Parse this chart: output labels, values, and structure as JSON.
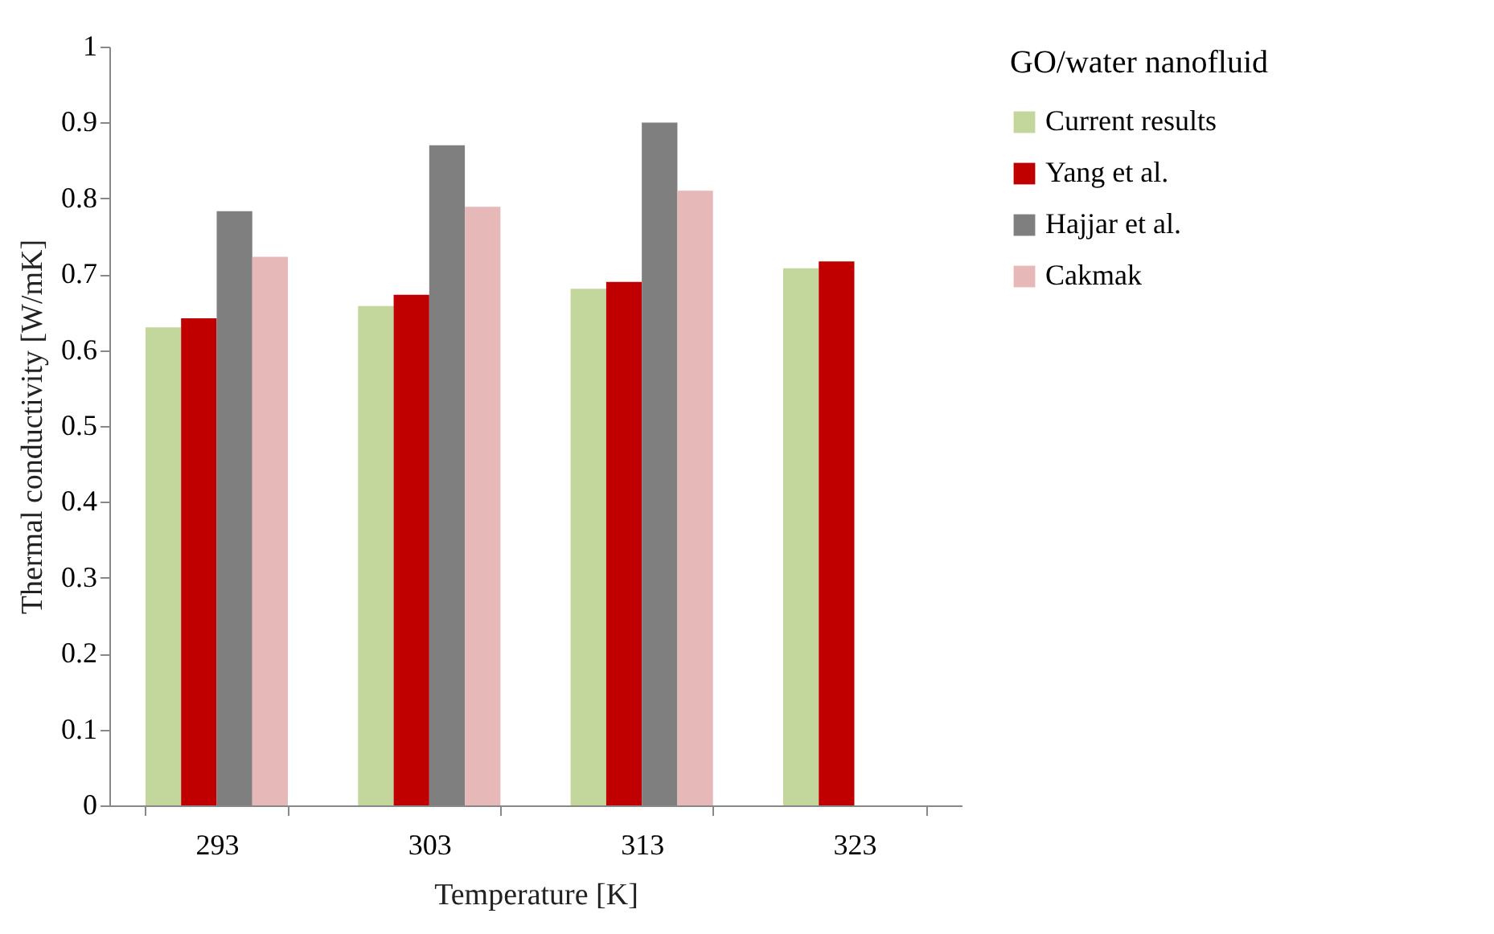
{
  "chart_data": {
    "type": "bar",
    "xlabel": "Temperature [K]",
    "ylabel": "Thermal conductivity [W/mK]",
    "legend_title": "GO/water nanofluid",
    "categories": [
      "293",
      "303",
      "313",
      "323"
    ],
    "series": [
      {
        "name": "Current results",
        "color": "#c3d69b",
        "values": [
          0.63,
          0.658,
          0.681,
          0.708
        ]
      },
      {
        "name": "Yang et al.",
        "color": "#c00000",
        "values": [
          0.642,
          0.673,
          0.69,
          0.717
        ]
      },
      {
        "name": "Hajjar et al.",
        "color": "#7f7f7f",
        "values": [
          0.783,
          0.87,
          0.9,
          null
        ]
      },
      {
        "name": "Cakmak",
        "color": "#e6b9b8",
        "values": [
          0.723,
          0.789,
          0.81,
          null
        ]
      }
    ],
    "ylim": [
      0,
      1
    ],
    "yticks": [
      0,
      0.1,
      0.2,
      0.3,
      0.4,
      0.5,
      0.6,
      0.7,
      0.8,
      0.9,
      1
    ],
    "grid": false,
    "legend": "right"
  }
}
